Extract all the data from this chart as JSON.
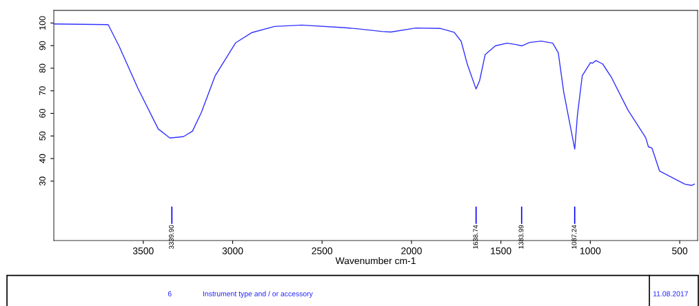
{
  "chart_data": {
    "type": "line",
    "xlabel": "Wavenumber cm-1",
    "xlim": [
      4000,
      400
    ],
    "xticks": [
      3500,
      3000,
      2500,
      2000,
      1500,
      1000,
      500
    ],
    "ylim": [
      3.7,
      105.6
    ],
    "yticks": [
      30,
      40,
      50,
      60,
      70,
      80,
      90,
      100
    ],
    "grid": false,
    "marker": "none",
    "line_style": "solid",
    "series": [
      {
        "color": "#3030ff",
        "x": [
          4000,
          3696,
          3634,
          3531,
          3416,
          3351,
          3275,
          3225,
          3175,
          3098,
          2984,
          2892,
          2766,
          2613,
          2384,
          2307,
          2166,
          2116,
          1975,
          1837,
          1761,
          1722,
          1688,
          1639,
          1619,
          1588,
          1531,
          1466,
          1416,
          1384,
          1340,
          1275,
          1210,
          1179,
          1149,
          1087,
          1072,
          1045,
          999,
          988,
          969,
          931,
          881,
          789,
          690,
          675,
          655,
          613,
          548,
          472,
          434,
          418
        ],
        "values": [
          99.6,
          99.3,
          89.6,
          71.3,
          53.1,
          49.1,
          49.7,
          52.1,
          60.4,
          76.6,
          91.2,
          95.8,
          98.5,
          99.1,
          98.0,
          97.5,
          96.3,
          96.0,
          97.8,
          97.6,
          95.9,
          91.9,
          81.8,
          70.8,
          74.5,
          86.0,
          89.9,
          91.1,
          90.5,
          89.9,
          91.4,
          92.0,
          91.1,
          86.8,
          69.6,
          44.2,
          59.2,
          76.7,
          82.5,
          82.2,
          83.4,
          81.9,
          75.8,
          61.4,
          49.2,
          45.2,
          44.6,
          34.5,
          31.8,
          28.7,
          28.1,
          28.7
        ]
      }
    ],
    "ref_lines": [
      {
        "axis": "x",
        "value": 3339.9,
        "label": "3339.90",
        "color": "#0000ff"
      },
      {
        "axis": "x",
        "value": 1638.74,
        "label": "1638.74",
        "color": "#0000ff"
      },
      {
        "axis": "x",
        "value": 1383.99,
        "label": "1383.99",
        "color": "#0000ff"
      },
      {
        "axis": "x",
        "value": 1087.24,
        "label": "1087.24",
        "color": "#0000ff"
      }
    ],
    "annotations": [
      "6",
      "Instrument type and / or accessory",
      "11.08.2017"
    ]
  }
}
